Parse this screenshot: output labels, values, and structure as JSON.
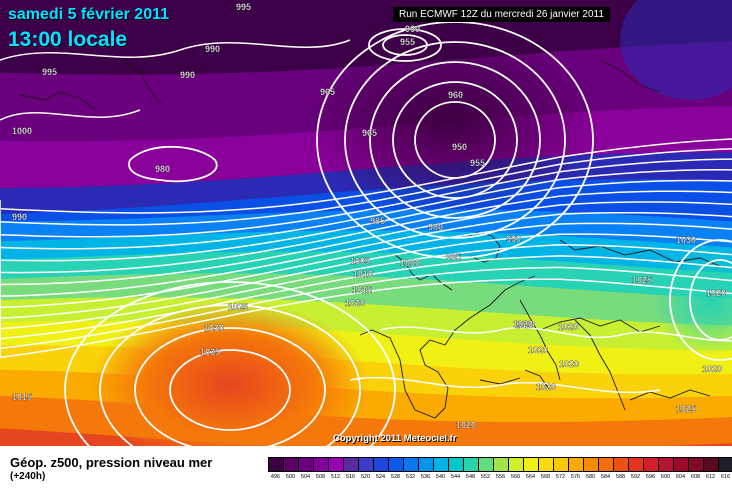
{
  "header": {
    "date": "samedi 5 février 2011",
    "time": "13:00 locale",
    "run": "Run ECMWF 12Z du mercredi 26 janvier 2011"
  },
  "copyright": "Copyright 2011 Meteociel.fr",
  "legend": {
    "title": "Géop. z500, pression niveau mer",
    "subtitle": "(+240h)",
    "ticks": [
      "496",
      "500",
      "504",
      "508",
      "512",
      "516",
      "520",
      "524",
      "528",
      "532",
      "536",
      "540",
      "544",
      "548",
      "552",
      "556",
      "560",
      "564",
      "568",
      "572",
      "576",
      "580",
      "584",
      "588",
      "592",
      "596",
      "600",
      "604",
      "608",
      "612",
      "616"
    ],
    "colors": [
      "#3d0040",
      "#5a0067",
      "#6a0080",
      "#82009a",
      "#9b00b4",
      "#5a2aa0",
      "#3c3cc8",
      "#1e46dc",
      "#0a5af0",
      "#0a78f5",
      "#0096f0",
      "#00b4e6",
      "#00c8c8",
      "#28d2aa",
      "#64dc7d",
      "#a0e64b",
      "#d2f028",
      "#f0f014",
      "#fadc0a",
      "#fac800",
      "#faaa00",
      "#fa8c00",
      "#f56e0a",
      "#f05014",
      "#e6321e",
      "#d21e28",
      "#b41432",
      "#9b0a2d",
      "#820a28",
      "#5a0a1e",
      "#1e1e2a"
    ]
  },
  "map": {
    "bands": [
      "#3d0048",
      "#6a007d",
      "#8a009b",
      "#2a2ab4",
      "#0a50e6",
      "#0a82f5",
      "#00b4e6",
      "#28d2b4",
      "#78dc7d",
      "#c8f032",
      "#f0f014",
      "#fad20a",
      "#faaa00",
      "#f5780a",
      "#e6461e"
    ],
    "isobar_labels": [
      "995",
      "960",
      "955",
      "990",
      "995",
      "990",
      "965",
      "960",
      "1000",
      "965",
      "950",
      "980",
      "955",
      "990",
      "985",
      "980",
      "990",
      "1030",
      "1005",
      "1000",
      "995",
      "1010",
      "1025",
      "1015",
      "1020",
      "1025",
      "1020",
      "1020",
      "1030",
      "1020",
      "1020",
      "1035",
      "1020",
      "1020",
      "1020",
      "1020",
      "1025",
      "1015",
      "1020"
    ]
  }
}
